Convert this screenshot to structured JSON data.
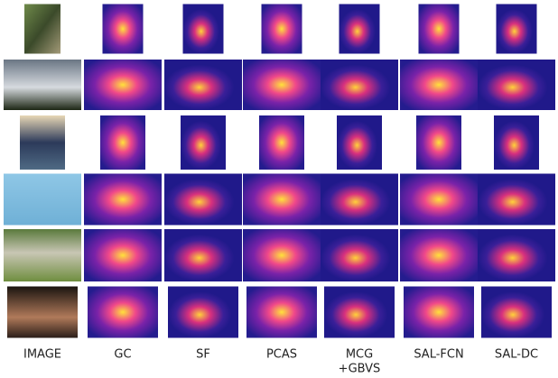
{
  "columns": [
    [
      "IMAGE"
    ],
    [
      "GC"
    ],
    [
      "SF"
    ],
    [
      "PCAS"
    ],
    [
      "MCG",
      "+GBVS"
    ],
    [
      "SAL-FCN"
    ],
    [
      "SAL-DC"
    ]
  ]
}
